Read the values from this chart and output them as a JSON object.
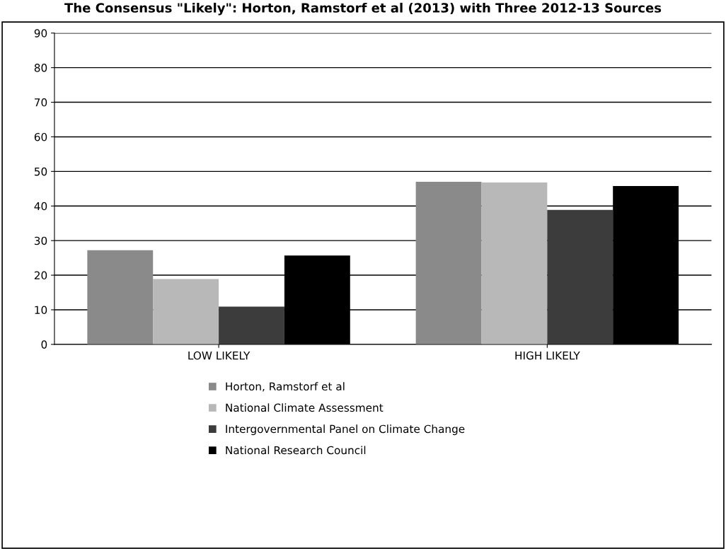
{
  "chart_data": {
    "type": "bar",
    "title": "The Consensus \"Likely\": Horton, Ramstorf et al (2013) with Three 2012-13 Sources",
    "categories": [
      "LOW LIKELY",
      "HIGH LIKELY"
    ],
    "series": [
      {
        "name": "Horton, Ramstorf et al",
        "color": "#8a8a8a",
        "values": [
          27.2,
          47
        ]
      },
      {
        "name": "National Climate Assessment",
        "color": "#b8b8b8",
        "values": [
          18.9,
          46.8
        ]
      },
      {
        "name": "Intergovernmental Panel on Climate Change",
        "color": "#3c3c3c",
        "values": [
          10.9,
          38.9
        ]
      },
      {
        "name": "National Research Council",
        "color": "#000000",
        "values": [
          25.7,
          45.8
        ]
      }
    ],
    "ylim": [
      0,
      90
    ],
    "yticks": [
      0,
      10,
      20,
      30,
      40,
      50,
      60,
      70,
      80,
      90
    ],
    "grid": "y",
    "legend": "bottom"
  }
}
